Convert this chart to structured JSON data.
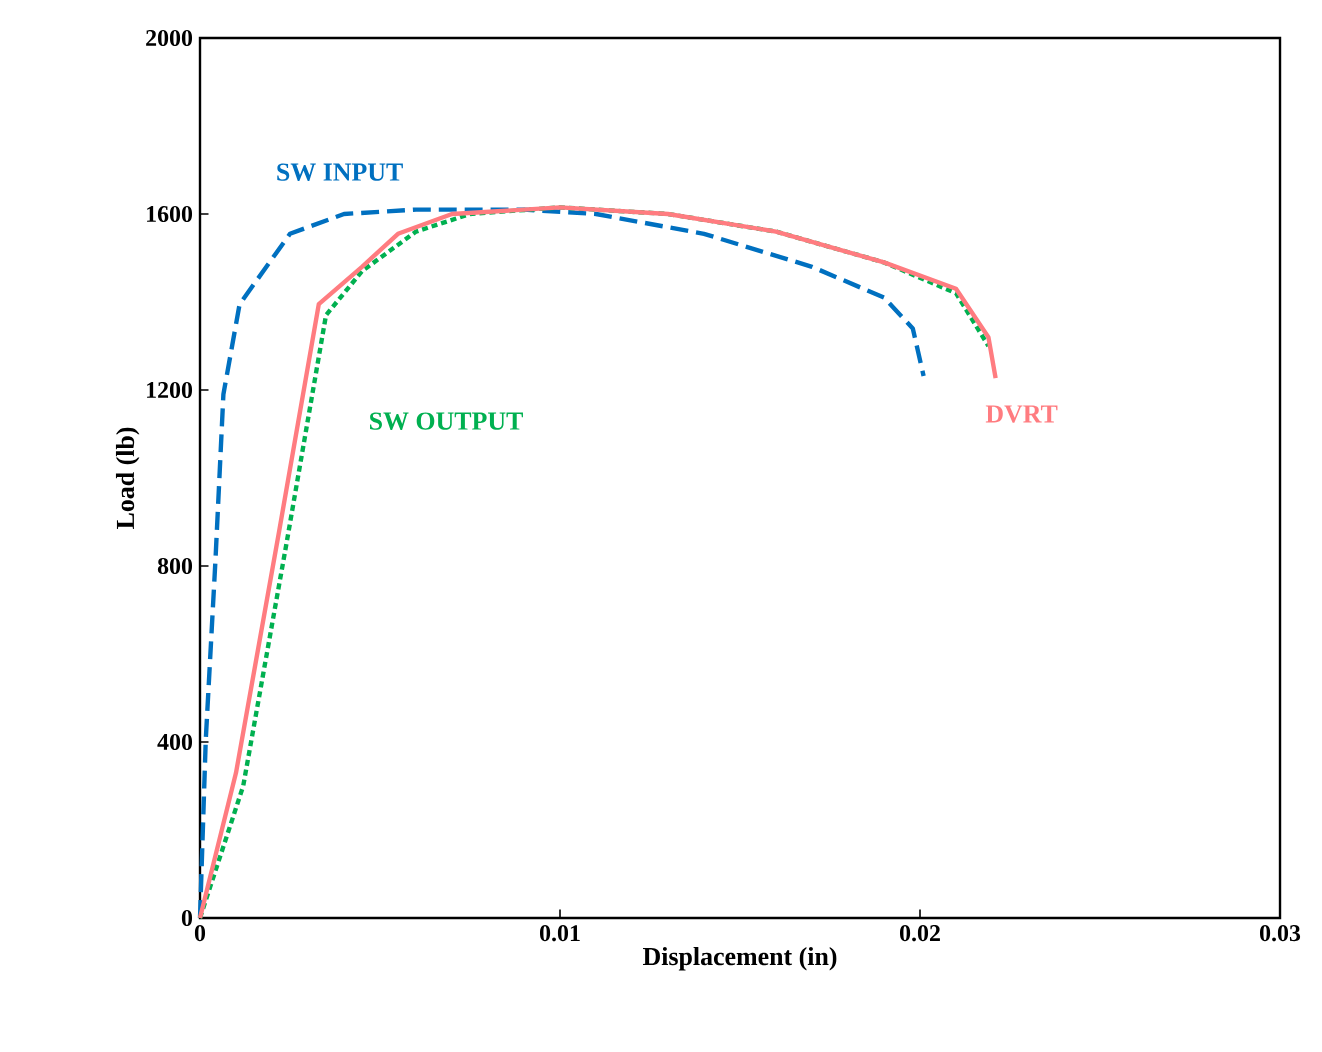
{
  "chart_data": {
    "type": "line",
    "xlabel": "Displacement (in)",
    "ylabel": "Load (lb)",
    "xlim": [
      0,
      0.03
    ],
    "ylim": [
      0,
      2000
    ],
    "xticks": [
      0,
      0.01,
      0.02,
      0.03
    ],
    "yticks": [
      0,
      400,
      800,
      1200,
      1600,
      2000
    ],
    "grid": false,
    "legend": false,
    "marker": "none",
    "series": [
      {
        "name": "SW INPUT",
        "color": "#0070c0",
        "line_style": "dashed",
        "x": [
          0,
          0.00016,
          0.00043,
          0.00065,
          0.0011,
          0.0025,
          0.004,
          0.006,
          0.009,
          0.011,
          0.014,
          0.017,
          0.019,
          0.0198,
          0.0201
        ],
        "values": [
          0,
          405,
          814,
          1190,
          1395,
          1555,
          1600,
          1610,
          1610,
          1600,
          1555,
          1480,
          1410,
          1340,
          1232
        ]
      },
      {
        "name": "SW OUTPUT",
        "color": "#00b050",
        "line_style": "dotted",
        "x": [
          0,
          0.0012,
          0.0024,
          0.0035,
          0.0045,
          0.006,
          0.0075,
          0.01,
          0.013,
          0.016,
          0.019,
          0.021,
          0.0219
        ],
        "values": [
          0,
          300,
          850,
          1370,
          1470,
          1560,
          1600,
          1615,
          1600,
          1560,
          1490,
          1420,
          1300
        ]
      },
      {
        "name": "DVRT",
        "color": "#ff7c80",
        "line_style": "solid",
        "x": [
          0,
          0.001,
          0.0022,
          0.0033,
          0.0045,
          0.0055,
          0.007,
          0.01,
          0.013,
          0.016,
          0.019,
          0.021,
          0.0219,
          0.0221
        ],
        "values": [
          0,
          330,
          880,
          1395,
          1480,
          1555,
          1600,
          1615,
          1600,
          1560,
          1490,
          1430,
          1320,
          1227
        ]
      }
    ]
  }
}
